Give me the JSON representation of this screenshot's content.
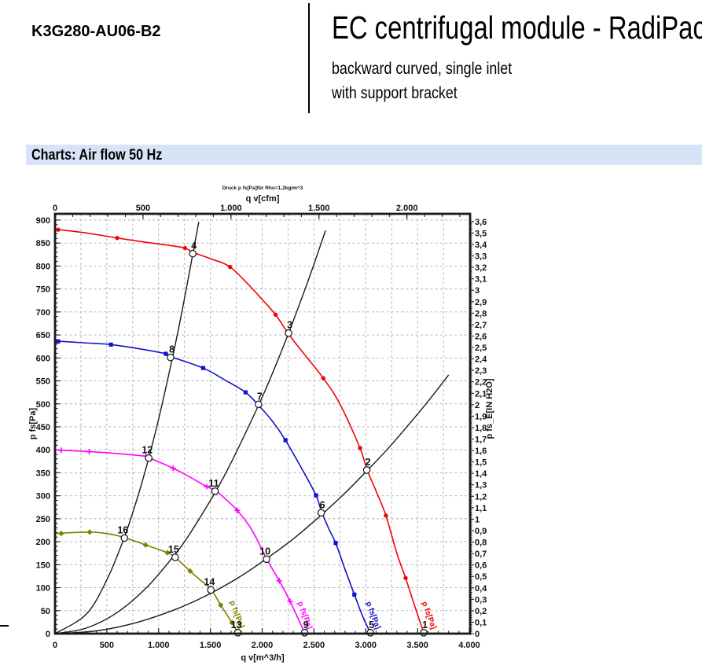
{
  "header": {
    "model": "K3G280-AU06-B2",
    "title": "EC centrifugal module - RadiPac",
    "subtitle1": "backward curved, single inlet",
    "subtitle2": "with support bracket"
  },
  "section": {
    "title": "Charts: Air flow 50 Hz"
  },
  "chart_data": {
    "type": "line",
    "title": "Druck p fs[Pa]für Rho=1,2kg/m^3",
    "x_bottom": {
      "label": "q v[m^3/h]",
      "ticks": [
        0,
        500,
        1000,
        1500,
        2000,
        2500,
        3000,
        3500,
        4000
      ],
      "tick_labels": [
        "0",
        "500",
        "1.000",
        "1.500",
        "2.000",
        "2.500",
        "3.000",
        "3.500",
        "4.000"
      ],
      "minor_step": 100,
      "max": 4000
    },
    "x_top": {
      "label": "q v[cfm]",
      "ticks": [
        0,
        500,
        1000,
        1500,
        2000
      ],
      "tick_labels": [
        "0",
        "500",
        "1.000",
        "1.500",
        "2.000"
      ],
      "minor_step": 100,
      "max": 2350
    },
    "y_left": {
      "label": "p fs[Pa]",
      "min": 0,
      "max": 900,
      "step": 50,
      "minor_step": 10,
      "tick_labels": [
        "0",
        "50",
        "100",
        "150",
        "200",
        "250",
        "300",
        "350",
        "400",
        "450",
        "500",
        "550",
        "600",
        "650",
        "700",
        "750",
        "800",
        "850",
        "900"
      ]
    },
    "y_right": {
      "label": "p fs_E[IN H2O]",
      "min": 0,
      "max": 3.6,
      "step": 0.1,
      "minor_step": 0.02,
      "tick_labels": [
        "0",
        "0,1",
        "0,2",
        "0,3",
        "0,4",
        "0,5",
        "0,6",
        "0,7",
        "0,8",
        "0,9",
        "1",
        "1,1",
        "1,2",
        "1,3",
        "1,4",
        "1,5",
        "1,6",
        "1,7",
        "1,8",
        "1,9",
        "2",
        "2,1",
        "2,2",
        "2,3",
        "2,4",
        "2,5",
        "2,6",
        "2,7",
        "2,8",
        "2,9",
        "3",
        "3,1",
        "3,2",
        "3,3",
        "3,4",
        "3,5",
        "3,6"
      ]
    },
    "grid": {
      "v_step": 250,
      "h_step": 50
    },
    "colors": {
      "red": "#ee0505",
      "blue": "#1212cc",
      "magenta": "#ff00ff",
      "olive": "#7f7f00",
      "black": "#1a1a1a"
    },
    "fan_curves": [
      {
        "name": "fan-curve-1",
        "color": "#ee0505",
        "marker": "circle",
        "end_label": "p fs[Pa]",
        "end_label_at": {
          "q": 3590,
          "p": 38
        },
        "points": [
          [
            0,
            880
          ],
          [
            300,
            872
          ],
          [
            600,
            861
          ],
          [
            900,
            851
          ],
          [
            1100,
            845
          ],
          [
            1255,
            839
          ],
          [
            1330,
            830
          ],
          [
            1500,
            816
          ],
          [
            1690,
            798
          ],
          [
            1900,
            752
          ],
          [
            2000,
            727
          ],
          [
            2130,
            694
          ],
          [
            2255,
            652
          ],
          [
            2400,
            610
          ],
          [
            2590,
            556
          ],
          [
            2750,
            500
          ],
          [
            2945,
            404
          ],
          [
            3010,
            358
          ],
          [
            3100,
            310
          ],
          [
            3195,
            257
          ],
          [
            3300,
            175
          ],
          [
            3385,
            121
          ],
          [
            3470,
            62
          ],
          [
            3560,
            2
          ]
        ],
        "markers": [
          [
            30,
            879
          ],
          [
            600,
            861
          ],
          [
            1255,
            839
          ],
          [
            1690,
            798
          ],
          [
            2130,
            694
          ],
          [
            2590,
            556
          ],
          [
            2945,
            404
          ],
          [
            3195,
            257
          ],
          [
            3385,
            121
          ]
        ]
      },
      {
        "name": "fan-curve-2",
        "color": "#1212cc",
        "marker": "square",
        "end_label": "p fs[Pa]",
        "end_label_at": {
          "q": 3051,
          "p": 38
        },
        "points": [
          [
            0,
            637
          ],
          [
            270,
            633
          ],
          [
            540,
            629
          ],
          [
            810,
            620
          ],
          [
            1070,
            609
          ],
          [
            1115,
            603
          ],
          [
            1430,
            578
          ],
          [
            1640,
            552
          ],
          [
            1840,
            525
          ],
          [
            1965,
            497
          ],
          [
            2100,
            462
          ],
          [
            2225,
            421
          ],
          [
            2400,
            352
          ],
          [
            2520,
            301
          ],
          [
            2570,
            268
          ],
          [
            2640,
            230
          ],
          [
            2710,
            197
          ],
          [
            2800,
            140
          ],
          [
            2890,
            85
          ],
          [
            2975,
            35
          ],
          [
            3045,
            2
          ]
        ],
        "markers": [
          [
            30,
            636
          ],
          [
            540,
            629
          ],
          [
            1070,
            609
          ],
          [
            1430,
            578
          ],
          [
            1840,
            525
          ],
          [
            2225,
            421
          ],
          [
            2520,
            301
          ],
          [
            2710,
            197
          ],
          [
            2890,
            85
          ]
        ]
      },
      {
        "name": "fan-curve-3",
        "color": "#ff00ff",
        "marker": "plus",
        "end_label": "p fs[Pa]",
        "end_label_at": {
          "q": 2391,
          "p": 38
        },
        "points": [
          [
            0,
            400
          ],
          [
            330,
            396
          ],
          [
            600,
            392
          ],
          [
            875,
            386
          ],
          [
            905,
            383
          ],
          [
            1140,
            360
          ],
          [
            1300,
            341
          ],
          [
            1465,
            320
          ],
          [
            1545,
            312
          ],
          [
            1650,
            292
          ],
          [
            1760,
            268
          ],
          [
            1900,
            226
          ],
          [
            2042,
            163
          ],
          [
            2165,
            115
          ],
          [
            2270,
            70
          ],
          [
            2410,
            2
          ]
        ],
        "markers": [
          [
            60,
            399
          ],
          [
            330,
            396
          ],
          [
            875,
            386
          ],
          [
            1140,
            360
          ],
          [
            1465,
            320
          ],
          [
            1760,
            268
          ],
          [
            2165,
            115
          ],
          [
            2270,
            70
          ]
        ]
      },
      {
        "name": "fan-curve-4",
        "color": "#7f7f00",
        "marker": "diamond",
        "end_label": "p fs[Pa]",
        "end_label_at": {
          "q": 1735,
          "p": 40
        },
        "points": [
          [
            0,
            218
          ],
          [
            335,
            221
          ],
          [
            520,
            217
          ],
          [
            670,
            209
          ],
          [
            875,
            193
          ],
          [
            1085,
            176
          ],
          [
            1160,
            166
          ],
          [
            1305,
            136
          ],
          [
            1400,
            117
          ],
          [
            1505,
            97
          ],
          [
            1600,
            62
          ],
          [
            1708,
            24
          ],
          [
            1765,
            2
          ]
        ],
        "markers": [
          [
            60,
            218
          ],
          [
            335,
            221
          ],
          [
            875,
            193
          ],
          [
            1085,
            176
          ],
          [
            1305,
            136
          ],
          [
            1600,
            62
          ],
          [
            1708,
            24
          ]
        ]
      }
    ],
    "system_curves": [
      {
        "name": "system-curve-A",
        "points": [
          [
            0,
            0
          ],
          [
            300,
            42
          ],
          [
            500,
            117
          ],
          [
            670,
            210
          ],
          [
            800,
            299
          ],
          [
            905,
            382
          ],
          [
            1000,
            467
          ],
          [
            1115,
            581
          ],
          [
            1200,
            672
          ],
          [
            1280,
            765
          ],
          [
            1330,
            826
          ],
          [
            1388,
            896
          ]
        ]
      },
      {
        "name": "system-curve-B",
        "points": [
          [
            0,
            0
          ],
          [
            300,
            12
          ],
          [
            600,
            46
          ],
          [
            900,
            104
          ],
          [
            1160,
            173
          ],
          [
            1300,
            217
          ],
          [
            1545,
            307
          ],
          [
            1700,
            372
          ],
          [
            1965,
            497
          ],
          [
            2100,
            567
          ],
          [
            2255,
            654
          ],
          [
            2400,
            741
          ],
          [
            2500,
            804
          ],
          [
            2611,
            877
          ]
        ]
      },
      {
        "name": "system-curve-C",
        "points": [
          [
            0,
            0
          ],
          [
            400,
            6
          ],
          [
            800,
            25
          ],
          [
            1200,
            56
          ],
          [
            1505,
            88
          ],
          [
            1800,
            126
          ],
          [
            2042,
            163
          ],
          [
            2300,
            206
          ],
          [
            2570,
            258
          ],
          [
            2800,
            306
          ],
          [
            3010,
            354
          ],
          [
            3200,
            399
          ],
          [
            3400,
            451
          ],
          [
            3600,
            505
          ],
          [
            3800,
            563
          ]
        ]
      }
    ],
    "operating_points": [
      {
        "n": "1",
        "q": 3560,
        "p": 2
      },
      {
        "n": "2",
        "q": 3010,
        "p": 356
      },
      {
        "n": "3",
        "q": 2255,
        "p": 654
      },
      {
        "n": "4",
        "q": 1330,
        "p": 827
      },
      {
        "n": "5",
        "q": 3045,
        "p": 2
      },
      {
        "n": "6",
        "q": 2570,
        "p": 263
      },
      {
        "n": "7",
        "q": 1965,
        "p": 499
      },
      {
        "n": "8",
        "q": 1115,
        "p": 601
      },
      {
        "n": "9",
        "q": 2410,
        "p": 2
      },
      {
        "n": "10",
        "q": 2042,
        "p": 162
      },
      {
        "n": "11",
        "q": 1545,
        "p": 310
      },
      {
        "n": "12",
        "q": 905,
        "p": 382
      },
      {
        "n": "13",
        "q": 1765,
        "p": 2
      },
      {
        "n": "14",
        "q": 1505,
        "p": 95
      },
      {
        "n": "15",
        "q": 1160,
        "p": 166
      },
      {
        "n": "16",
        "q": 670,
        "p": 208
      }
    ]
  }
}
